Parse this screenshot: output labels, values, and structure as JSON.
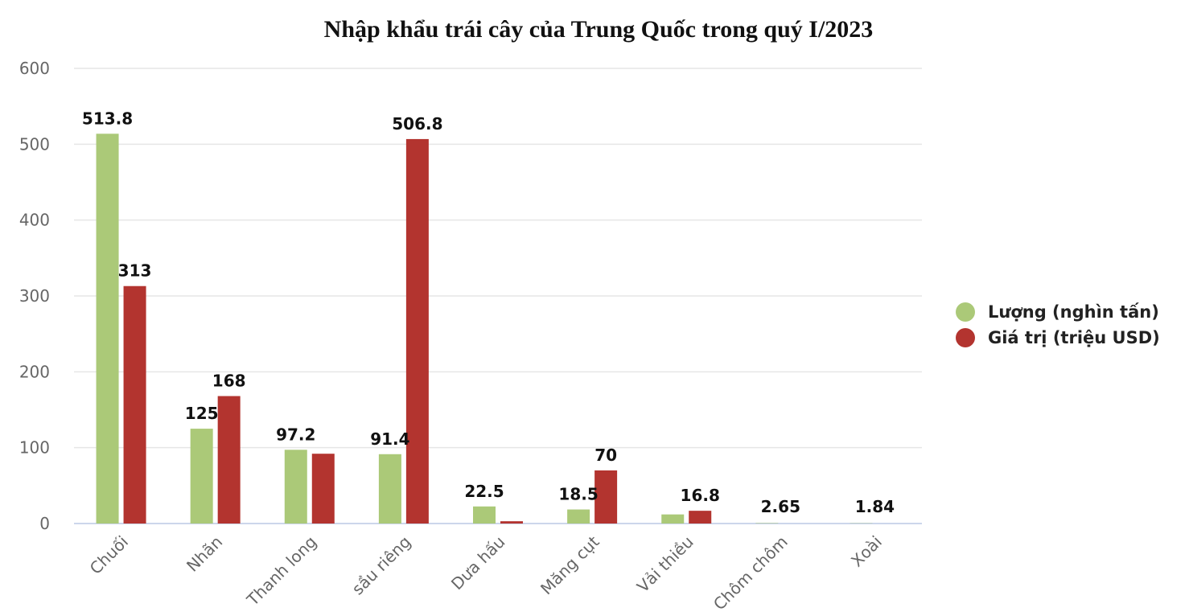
{
  "colors": {
    "green": "#abc978",
    "red": "#b3342f",
    "grid": "#e6e6e6",
    "axis": "#ccd6eb"
  },
  "chart_data": {
    "type": "bar",
    "title": "Nhập khẩu trái cây của Trung Quốc trong quý I/2023",
    "categories": [
      "Chuối",
      "Nhãn",
      "Thanh long",
      "sầu riêng",
      "Dưa hấu",
      "Măng cụt",
      "Vải thiều",
      "Chôm chôm",
      "Xoài"
    ],
    "series": [
      {
        "name": "Lượng (nghìn tấn)",
        "color": "#abc978",
        "values": [
          513.8,
          125,
          97.2,
          91.4,
          22.5,
          18.5,
          12,
          0.5,
          0.3
        ]
      },
      {
        "name": "Giá trị (triệu USD)",
        "color": "#b3342f",
        "values": [
          313,
          168,
          92,
          506.8,
          3,
          70,
          16.8,
          0,
          0
        ]
      }
    ],
    "data_labels": [
      {
        "category": 0,
        "text": "513.8",
        "series": 0
      },
      {
        "category": 0,
        "text": "313",
        "series": 1
      },
      {
        "category": 1,
        "text": "125",
        "series": 0
      },
      {
        "category": 1,
        "text": "168",
        "series": 1
      },
      {
        "category": 2,
        "text": "97.2",
        "series": 0
      },
      {
        "category": 3,
        "text": "91.4",
        "series": 0
      },
      {
        "category": 3,
        "text": "506.8",
        "series": 1
      },
      {
        "category": 4,
        "text": "22.5",
        "series": 0
      },
      {
        "category": 5,
        "text": "18.5",
        "series": 0
      },
      {
        "category": 5,
        "text": "70",
        "series": 1
      },
      {
        "category": 6,
        "text": "16.8",
        "series": 1
      },
      {
        "category": 7,
        "text": "2.65",
        "series": -1
      },
      {
        "category": 8,
        "text": "1.84",
        "series": -1
      }
    ],
    "yticks": [
      "0",
      "100",
      "200",
      "300",
      "400",
      "500",
      "600"
    ],
    "ylim": [
      0,
      600
    ],
    "grid": true,
    "legend_position": "right"
  }
}
